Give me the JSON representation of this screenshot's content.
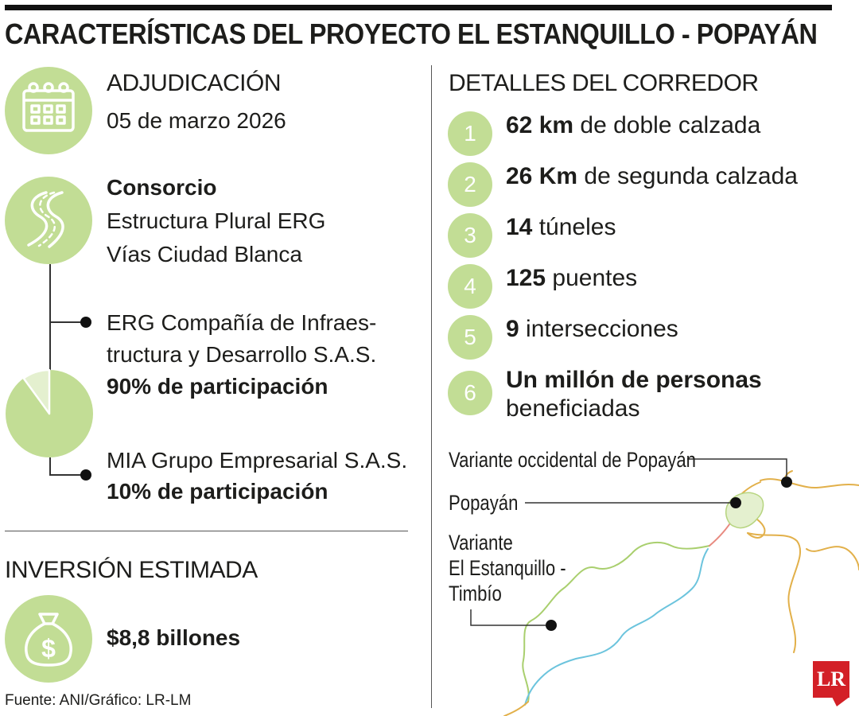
{
  "title": "CARACTERÍSTICAS DEL PROYECTO EL ESTANQUILLO - POPAYÁN",
  "adjudicacion": {
    "heading": "ADJUDICACIÓN",
    "date": "05 de marzo 2026",
    "icon": "calendar-icon"
  },
  "consorcio": {
    "heading": "Consorcio",
    "lines": [
      "Estructura Plural ERG",
      "Vías Ciudad Blanca"
    ],
    "icon": "road-icon",
    "members": [
      {
        "line1": "ERG Compañía de Infraes-",
        "line2": "tructura y Desarrollo S.A.S.",
        "share": "90% de participación",
        "percent": 90
      },
      {
        "line1": "MIA Grupo Empresarial S.A.S.",
        "share": "10% de participación",
        "percent": 10
      }
    ]
  },
  "inversion": {
    "heading": "INVERSIÓN ESTIMADA",
    "amount": "$8,8 billones",
    "icon": "money-bag-icon"
  },
  "corredor": {
    "heading": "DETALLES DEL CORREDOR",
    "items": [
      {
        "num": "1",
        "bold": "62 km",
        "rest": " de doble calzada"
      },
      {
        "num": "2",
        "bold": "26 Km",
        "rest": " de segunda calzada"
      },
      {
        "num": "3",
        "bold": "14",
        "rest": " túneles"
      },
      {
        "num": "4",
        "bold": "125",
        "rest": " puentes"
      },
      {
        "num": "5",
        "bold": "9",
        "rest": " intersecciones"
      },
      {
        "num": "6",
        "bold": "Un millón de personas",
        "rest": "beneficiadas"
      }
    ]
  },
  "map": {
    "label_variante_occidental": "Variante occidental de Popayán",
    "label_popayan": "Popayán",
    "label_estanquillo_1": "Variante",
    "label_estanquillo_2": "El Estanquillo -",
    "label_estanquillo_3": "Timbío"
  },
  "source": "Fuente: ANI/Gráfico: LR-LM",
  "logo": "LR",
  "colors": {
    "accent_green": "#c2dd95",
    "light_green": "#e4f0cf",
    "dark": "#1d1d1b",
    "logo_red": "#d32027",
    "road_orange": "#e2b04a",
    "road_green": "#a9cf6e",
    "road_blue": "#6cc4dd",
    "road_red": "#e88a80"
  }
}
